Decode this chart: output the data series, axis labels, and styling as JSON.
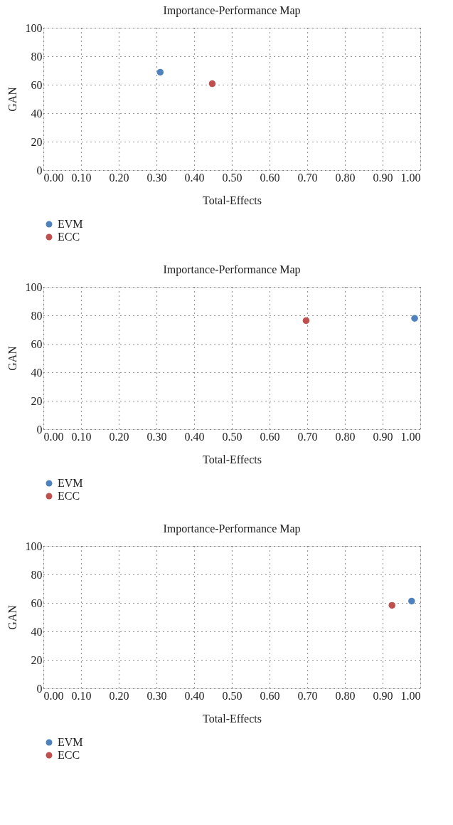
{
  "chart_data": [
    {
      "type": "scatter",
      "title": "Importance-Performance Map",
      "xlabel": "Total-Effects",
      "ylabel": "GAN",
      "xlim": [
        0,
        1
      ],
      "ylim": [
        0,
        100
      ],
      "xticks": [
        {
          "value": 0,
          "label": "0.00"
        },
        {
          "value": 0.1,
          "label": "0.10"
        },
        {
          "value": 0.2,
          "label": "0.20"
        },
        {
          "value": 0.3,
          "label": "0.30"
        },
        {
          "value": 0.4,
          "label": "0.40"
        },
        {
          "value": 0.5,
          "label": "0.50"
        },
        {
          "value": 0.6,
          "label": "0.60"
        },
        {
          "value": 0.7,
          "label": "0.70"
        },
        {
          "value": 0.8,
          "label": "0.80"
        },
        {
          "value": 0.9,
          "label": "0.90"
        },
        {
          "value": 1,
          "label": "1.00"
        }
      ],
      "yticks": [
        0,
        20,
        40,
        60,
        80,
        100
      ],
      "grid": true,
      "legend": "bottom left",
      "marker": "circle",
      "series": [
        {
          "name": "EVM",
          "color": "#4f81bd",
          "x": [
            0.31
          ],
          "values": [
            68.8
          ]
        },
        {
          "name": "ECC",
          "color": "#c0504d",
          "x": [
            0.448
          ],
          "values": [
            60.7
          ]
        }
      ]
    },
    {
      "type": "scatter",
      "title": "Importance-Performance Map",
      "xlabel": "Total-Effects",
      "ylabel": "GAN",
      "xlim": [
        0,
        1
      ],
      "ylim": [
        0,
        100
      ],
      "xticks": [
        {
          "value": 0,
          "label": "0.00"
        },
        {
          "value": 0.1,
          "label": "0.10"
        },
        {
          "value": 0.2,
          "label": "0.20"
        },
        {
          "value": 0.3,
          "label": "0.30"
        },
        {
          "value": 0.4,
          "label": "0.40"
        },
        {
          "value": 0.5,
          "label": "0.50"
        },
        {
          "value": 0.6,
          "label": "0.60"
        },
        {
          "value": 0.7,
          "label": "0.70"
        },
        {
          "value": 0.8,
          "label": "0.80"
        },
        {
          "value": 0.9,
          "label": "0.90"
        },
        {
          "value": 1,
          "label": "1.00"
        }
      ],
      "yticks": [
        0,
        20,
        40,
        60,
        80,
        100
      ],
      "grid": true,
      "legend": "bottom left",
      "marker": "circle",
      "series": [
        {
          "name": "EVM",
          "color": "#4f81bd",
          "x": [
            0.985
          ],
          "values": [
            77.9
          ]
        },
        {
          "name": "ECC",
          "color": "#c0504d",
          "x": [
            0.697
          ],
          "values": [
            76.3
          ]
        }
      ]
    },
    {
      "type": "scatter",
      "title": "Importance-Performance Map",
      "xlabel": "Total-Effects",
      "ylabel": "GAN",
      "xlim": [
        0,
        1
      ],
      "ylim": [
        0,
        100
      ],
      "xticks": [
        {
          "value": 0,
          "label": "0.00"
        },
        {
          "value": 0.1,
          "label": "0.10"
        },
        {
          "value": 0.2,
          "label": "0.20"
        },
        {
          "value": 0.3,
          "label": "0.30"
        },
        {
          "value": 0.4,
          "label": "0.40"
        },
        {
          "value": 0.5,
          "label": "0.50"
        },
        {
          "value": 0.6,
          "label": "0.60"
        },
        {
          "value": 0.7,
          "label": "0.70"
        },
        {
          "value": 0.8,
          "label": "0.80"
        },
        {
          "value": 0.9,
          "label": "0.90"
        },
        {
          "value": 1,
          "label": "1.00"
        }
      ],
      "yticks": [
        0,
        20,
        40,
        60,
        80,
        100
      ],
      "grid": true,
      "legend": "bottom left",
      "marker": "circle",
      "series": [
        {
          "name": "EVM",
          "color": "#4f81bd",
          "x": [
            0.977
          ],
          "values": [
            61.3
          ]
        },
        {
          "name": "ECC",
          "color": "#c0504d",
          "x": [
            0.925
          ],
          "values": [
            58.3
          ]
        }
      ]
    }
  ]
}
